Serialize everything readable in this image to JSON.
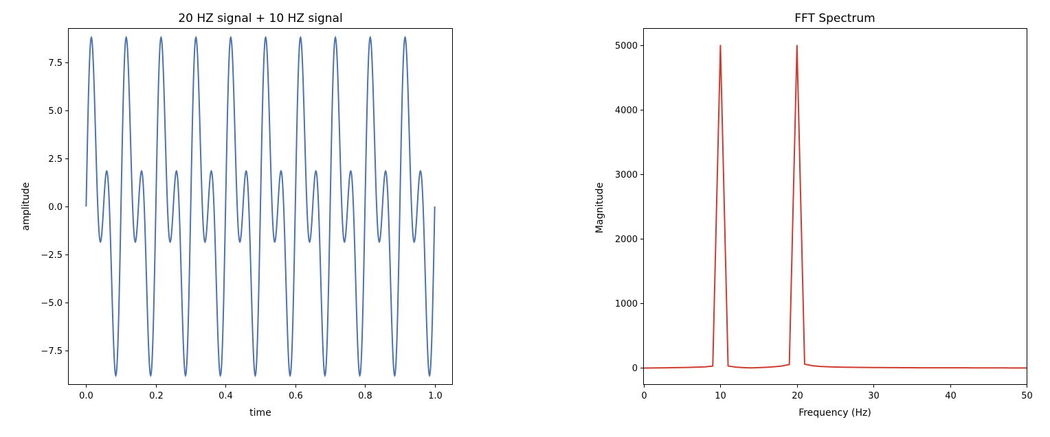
{
  "chart_data": [
    {
      "type": "line",
      "title": "20 HZ signal + 10 HZ signal",
      "xlabel": "time",
      "ylabel": "amplitude",
      "xlim": [
        -0.05,
        1.05
      ],
      "ylim": [
        -9.25,
        9.25
      ],
      "x_ticks": [
        0.0,
        0.2,
        0.4,
        0.6,
        0.8,
        1.0
      ],
      "x_tick_labels": [
        "0.0",
        "0.2",
        "0.4",
        "0.6",
        "0.8",
        "1.0"
      ],
      "y_ticks": [
        -7.5,
        -5.0,
        -2.5,
        0.0,
        2.5,
        5.0,
        7.5
      ],
      "y_tick_labels": [
        "−7.5",
        "−5.0",
        "−2.5",
        "0.0",
        "2.5",
        "5.0",
        "7.5"
      ],
      "grid": false,
      "series": [
        {
          "color": "#4c72b0",
          "formula": "5*sin(2*pi*10*t) + 5*sin(2*pi*20*t)",
          "x_range": [
            0,
            1
          ],
          "samples": 1000
        }
      ]
    },
    {
      "type": "line",
      "title": "FFT Spectrum",
      "xlabel": "Frequency (Hz)",
      "ylabel": "Magnitude",
      "xlim": [
        0,
        50
      ],
      "ylim": [
        -250,
        5250
      ],
      "x_ticks": [
        0,
        10,
        20,
        30,
        40,
        50
      ],
      "x_tick_labels": [
        "0",
        "10",
        "20",
        "30",
        "40",
        "50"
      ],
      "y_ticks": [
        0,
        1000,
        2000,
        3000,
        4000,
        5000
      ],
      "y_tick_labels": [
        "0",
        "1000",
        "2000",
        "3000",
        "4000",
        "5000"
      ],
      "grid": false,
      "series": [
        {
          "color": "#d03b2f",
          "x": [
            0,
            1,
            2,
            3,
            4,
            5,
            6,
            7,
            8,
            9,
            10,
            11,
            12,
            13,
            14,
            15,
            16,
            17,
            18,
            19,
            20,
            21,
            22,
            23,
            24,
            25,
            26,
            27,
            28,
            29,
            30,
            31,
            32,
            33,
            34,
            35,
            36,
            37,
            38,
            39,
            40,
            41,
            42,
            43,
            44,
            45,
            46,
            47,
            48,
            49,
            50
          ],
          "y": [
            0,
            1,
            2,
            4,
            6,
            8,
            10,
            14,
            18,
            30,
            5000,
            32,
            14,
            6,
            2,
            6,
            12,
            20,
            30,
            55,
            5000,
            60,
            35,
            25,
            20,
            16,
            13,
            11,
            10,
            9,
            8,
            7,
            6,
            6,
            5,
            5,
            4,
            4,
            4,
            3,
            3,
            3,
            3,
            2,
            2,
            2,
            2,
            2,
            1,
            1,
            1
          ]
        }
      ]
    }
  ]
}
